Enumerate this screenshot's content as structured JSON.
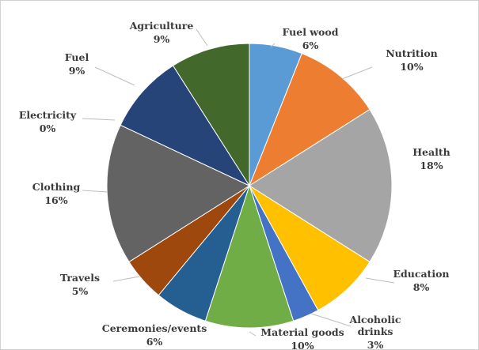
{
  "chart_data": {
    "type": "pie",
    "title": "",
    "series": [
      {
        "label": "Fuel wood",
        "value": 6,
        "display": "6%",
        "color": "#5B9BD5"
      },
      {
        "label": "Nutrition",
        "value": 10,
        "display": "10%",
        "color": "#ED7D31"
      },
      {
        "label": "Health",
        "value": 18,
        "display": "18%",
        "color": "#A5A5A5"
      },
      {
        "label": "Education",
        "value": 8,
        "display": "8%",
        "color": "#FFC000"
      },
      {
        "label": "Alcoholic drinks",
        "value": 3,
        "display": "3%",
        "color": "#4472C4"
      },
      {
        "label": "Material goods",
        "value": 10,
        "display": "10%",
        "color": "#70AD47"
      },
      {
        "label": "Ceremonies/events",
        "value": 6,
        "display": "6%",
        "color": "#255E91"
      },
      {
        "label": "Travels",
        "value": 5,
        "display": "5%",
        "color": "#9E480E"
      },
      {
        "label": "Clothing",
        "value": 16,
        "display": "16%",
        "color": "#636363"
      },
      {
        "label": "Electricity",
        "value": 0,
        "display": "0%",
        "color": "#997300"
      },
      {
        "label": "Fuel",
        "value": 9,
        "display": "9%",
        "color": "#264478"
      },
      {
        "label": "Agriculture",
        "value": 9,
        "display": "9%",
        "color": "#43682B"
      }
    ],
    "legend": "none",
    "data_labels": "outside-with-leader-lines"
  }
}
